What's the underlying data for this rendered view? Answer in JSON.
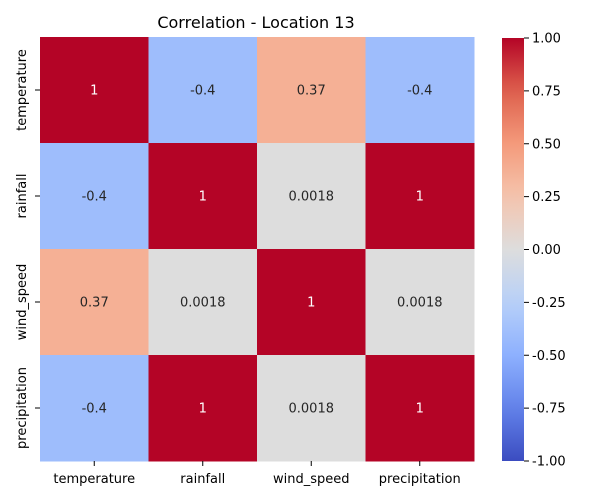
{
  "chart_data": {
    "type": "heatmap",
    "title": "Correlation - Location 13",
    "x_labels": [
      "temperature",
      "rainfall",
      "wind_speed",
      "precipitation"
    ],
    "y_labels": [
      "temperature",
      "rainfall",
      "wind_speed",
      "precipitation"
    ],
    "values": [
      [
        1,
        -0.4,
        0.37,
        -0.4
      ],
      [
        -0.4,
        1,
        0.0018,
        1
      ],
      [
        0.37,
        0.0018,
        1,
        0.0018
      ],
      [
        -0.4,
        1,
        0.0018,
        1
      ]
    ],
    "annotations": [
      [
        "1",
        "-0.4",
        "0.37",
        "-0.4"
      ],
      [
        "-0.4",
        "1",
        "0.0018",
        "1"
      ],
      [
        "0.37",
        "0.0018",
        "1",
        "0.0018"
      ],
      [
        "-0.4",
        "1",
        "0.0018",
        "1"
      ]
    ],
    "colormap": "coolwarm",
    "vmin": -1,
    "vmax": 1,
    "colorbar_ticks": [
      "-1.00",
      "-0.75",
      "-0.50",
      "-0.25",
      "0.00",
      "0.25",
      "0.50",
      "0.75",
      "1.00"
    ]
  }
}
